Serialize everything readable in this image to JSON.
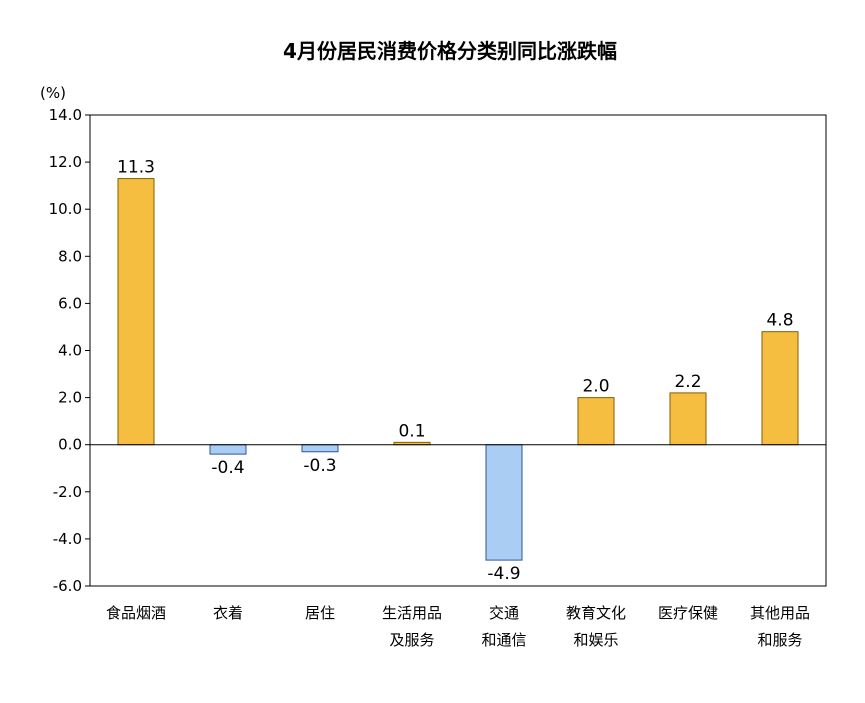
{
  "chart_data": {
    "type": "bar",
    "title": "4月份居民消费价格分类别同比涨跌幅",
    "unit_label": "(%)",
    "xlabel": "",
    "ylabel": "",
    "ylim": [
      -6.0,
      14.0
    ],
    "y_ticks": [
      "14.0",
      "12.0",
      "10.0",
      "8.0",
      "6.0",
      "4.0",
      "2.0",
      "0.0",
      "-2.0",
      "-4.0",
      "-6.0"
    ],
    "y_tick_values": [
      14,
      12,
      10,
      8,
      6,
      4,
      2,
      0,
      -2,
      -4,
      -6
    ],
    "grid": false,
    "categories": [
      [
        "食品烟酒"
      ],
      [
        "衣着"
      ],
      [
        "居住"
      ],
      [
        "生活用品",
        "及服务"
      ],
      [
        "交通",
        "和通信"
      ],
      [
        "教育文化",
        "和娱乐"
      ],
      [
        "医疗保健"
      ],
      [
        "其他用品",
        "和服务"
      ]
    ],
    "values": [
      11.3,
      -0.4,
      -0.3,
      0.1,
      -4.9,
      2.0,
      2.2,
      4.8
    ],
    "value_labels": [
      "11.3",
      "-0.4",
      "-0.3",
      "0.1",
      "-4.9",
      "2.0",
      "2.2",
      "4.8"
    ],
    "colors": {
      "positive_fill": "#F5BE41",
      "positive_stroke": "#7F6000",
      "negative_fill": "#A9CDF3",
      "negative_stroke": "#2F5597",
      "axis": "#000000"
    }
  }
}
